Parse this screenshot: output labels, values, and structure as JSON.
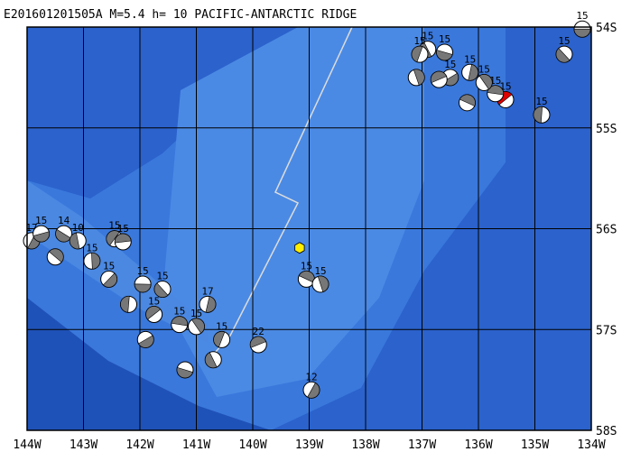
{
  "map_data": {
    "type": "focal-mechanism-map",
    "title": "E201601201505A  M=5.4  h= 10 PACIFIC-ANTARCTIC RIDGE",
    "xlim": [
      -144,
      -134
    ],
    "ylim": [
      -58,
      -54
    ],
    "xticks": [
      {
        "value": -144,
        "label": "144W"
      },
      {
        "value": -143,
        "label": "143W"
      },
      {
        "value": -142,
        "label": "142W"
      },
      {
        "value": -141,
        "label": "141W"
      },
      {
        "value": -140,
        "label": "140W"
      },
      {
        "value": -139,
        "label": "139W"
      },
      {
        "value": -138,
        "label": "138W"
      },
      {
        "value": -137,
        "label": "137W"
      },
      {
        "value": -136,
        "label": "136W"
      },
      {
        "value": -135,
        "label": "135W"
      },
      {
        "value": -134,
        "label": "134W"
      }
    ],
    "yticks": [
      {
        "value": -54,
        "label": "54S"
      },
      {
        "value": -55,
        "label": "55S"
      },
      {
        "value": -56,
        "label": "56S"
      },
      {
        "value": -57,
        "label": "57S"
      },
      {
        "value": -58,
        "label": "58S"
      }
    ],
    "epicenter": {
      "lon": -139.17,
      "lat": -56.19,
      "color": "#ffee00"
    },
    "events": [
      {
        "lon": -134.16,
        "lat": -54.02,
        "label": "15"
      },
      {
        "lon": -134.48,
        "lat": -54.27,
        "label": "15"
      },
      {
        "lon": -134.88,
        "lat": -54.87,
        "label": "15"
      },
      {
        "lon": -135.52,
        "lat": -54.72,
        "label": "15",
        "color": "#e00000"
      },
      {
        "lon": -135.7,
        "lat": -54.66,
        "label": "15"
      },
      {
        "lon": -135.9,
        "lat": -54.55,
        "label": "15"
      },
      {
        "lon": -136.15,
        "lat": -54.45,
        "label": "15"
      },
      {
        "lon": -136.5,
        "lat": -54.5,
        "label": "15"
      },
      {
        "lon": -136.6,
        "lat": -54.25,
        "label": "15"
      },
      {
        "lon": -136.9,
        "lat": -54.22,
        "label": "15"
      },
      {
        "lon": -137.04,
        "lat": -54.27,
        "label": "15"
      },
      {
        "lon": -136.7,
        "lat": -54.52
      },
      {
        "lon": -136.2,
        "lat": -54.75
      },
      {
        "lon": -137.1,
        "lat": -54.5
      },
      {
        "lon": -143.92,
        "lat": -56.12,
        "label": "17"
      },
      {
        "lon": -143.75,
        "lat": -56.05,
        "label": "15"
      },
      {
        "lon": -143.35,
        "lat": -56.05,
        "label": "14"
      },
      {
        "lon": -143.1,
        "lat": -56.12,
        "label": "10"
      },
      {
        "lon": -142.45,
        "lat": -56.1,
        "label": "15"
      },
      {
        "lon": -142.3,
        "lat": -56.13,
        "label": "15"
      },
      {
        "lon": -143.5,
        "lat": -56.28
      },
      {
        "lon": -142.85,
        "lat": -56.32,
        "label": "15"
      },
      {
        "lon": -142.55,
        "lat": -56.5,
        "label": "15"
      },
      {
        "lon": -141.95,
        "lat": -56.55,
        "label": "15"
      },
      {
        "lon": -141.6,
        "lat": -56.6,
        "label": "15"
      },
      {
        "lon": -142.2,
        "lat": -56.75
      },
      {
        "lon": -141.75,
        "lat": -56.85,
        "label": "15"
      },
      {
        "lon": -141.3,
        "lat": -56.95,
        "label": "15"
      },
      {
        "lon": -141.0,
        "lat": -56.97,
        "label": "15"
      },
      {
        "lon": -140.8,
        "lat": -56.75,
        "label": "17"
      },
      {
        "lon": -141.9,
        "lat": -57.1
      },
      {
        "lon": -141.2,
        "lat": -57.4
      },
      {
        "lon": -140.7,
        "lat": -57.3
      },
      {
        "lon": -140.55,
        "lat": -57.1,
        "label": "15"
      },
      {
        "lon": -139.9,
        "lat": -57.15,
        "label": "22"
      },
      {
        "lon": -139.05,
        "lat": -56.5,
        "label": "15"
      },
      {
        "lon": -138.8,
        "lat": -56.55,
        "label": "15"
      },
      {
        "lon": -138.96,
        "lat": -57.6,
        "label": "12"
      }
    ]
  }
}
